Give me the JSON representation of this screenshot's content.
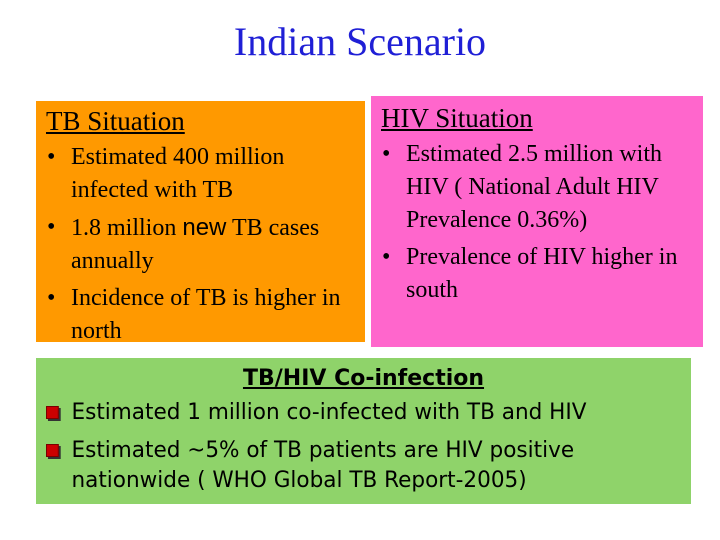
{
  "title": "Indian Scenario",
  "tb_box": {
    "heading": "TB Situation",
    "items": [
      {
        "text": "Estimated 400 million infected with TB"
      },
      {
        "pre": "1.8 million ",
        "emph": "new",
        "post": " TB cases annually"
      },
      {
        "text": "Incidence of TB is higher in north"
      }
    ],
    "bg_color": "#ff9900"
  },
  "hiv_box": {
    "heading": "HIV Situation",
    "items": [
      {
        "text": "Estimated 2.5 million with HIV ( National Adult HIV  Prevalence 0.36%)"
      },
      {
        "text": "Prevalence of HIV higher in south"
      }
    ],
    "bg_color": "#ff66cc"
  },
  "coinfection_box": {
    "heading": "TB/HIV Co-infection",
    "items": [
      {
        "text": "Estimated 1 million co-infected with TB and HIV"
      },
      {
        "text": "Estimated ~5% of TB patients are HIV positive nationwide ( WHO Global TB Report-2005)"
      }
    ],
    "bg_color": "#8fd36a",
    "bullet_color": "#cc0000"
  },
  "colors": {
    "title": "#1f1fd6"
  },
  "bullet_icon": "round-bullet-icon",
  "square_bullet_icon": "square-bullet-icon"
}
